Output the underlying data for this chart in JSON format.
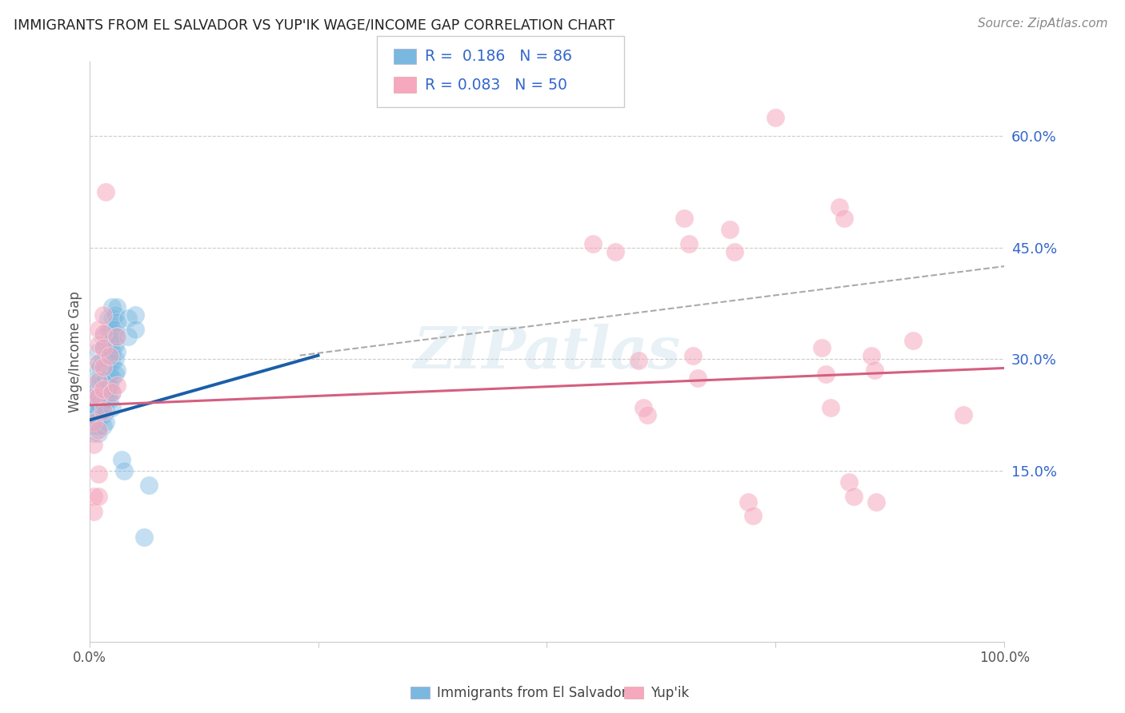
{
  "title": "IMMIGRANTS FROM EL SALVADOR VS YUP'IK WAGE/INCOME GAP CORRELATION CHART",
  "source": "Source: ZipAtlas.com",
  "ylabel": "Wage/Income Gap",
  "ytick_labels": [
    "15.0%",
    "30.0%",
    "45.0%",
    "60.0%"
  ],
  "ytick_values": [
    0.15,
    0.3,
    0.45,
    0.6
  ],
  "xlim": [
    0.0,
    1.0
  ],
  "ylim": [
    -0.08,
    0.7
  ],
  "watermark": "ZIPatlas",
  "blue_color": "#7ab8e0",
  "pink_color": "#f5a8be",
  "line_blue": "#1a5fa8",
  "line_pink": "#d45f80",
  "line_gray": "#aaaaaa",
  "title_color": "#222222",
  "blue_scatter": [
    [
      0.005,
      0.265
    ],
    [
      0.005,
      0.255
    ],
    [
      0.005,
      0.245
    ],
    [
      0.005,
      0.235
    ],
    [
      0.005,
      0.23
    ],
    [
      0.005,
      0.225
    ],
    [
      0.005,
      0.22
    ],
    [
      0.005,
      0.215
    ],
    [
      0.005,
      0.21
    ],
    [
      0.005,
      0.2
    ],
    [
      0.008,
      0.24
    ],
    [
      0.008,
      0.228
    ],
    [
      0.01,
      0.31
    ],
    [
      0.01,
      0.295
    ],
    [
      0.01,
      0.285
    ],
    [
      0.01,
      0.275
    ],
    [
      0.01,
      0.265
    ],
    [
      0.01,
      0.25
    ],
    [
      0.01,
      0.24
    ],
    [
      0.01,
      0.23
    ],
    [
      0.01,
      0.22
    ],
    [
      0.01,
      0.21
    ],
    [
      0.01,
      0.2
    ],
    [
      0.012,
      0.29
    ],
    [
      0.012,
      0.275
    ],
    [
      0.015,
      0.33
    ],
    [
      0.015,
      0.315
    ],
    [
      0.015,
      0.3
    ],
    [
      0.015,
      0.285
    ],
    [
      0.015,
      0.27
    ],
    [
      0.015,
      0.255
    ],
    [
      0.015,
      0.24
    ],
    [
      0.015,
      0.225
    ],
    [
      0.015,
      0.21
    ],
    [
      0.018,
      0.32
    ],
    [
      0.018,
      0.305
    ],
    [
      0.018,
      0.29
    ],
    [
      0.018,
      0.275
    ],
    [
      0.018,
      0.26
    ],
    [
      0.018,
      0.245
    ],
    [
      0.018,
      0.23
    ],
    [
      0.018,
      0.215
    ],
    [
      0.02,
      0.355
    ],
    [
      0.02,
      0.34
    ],
    [
      0.02,
      0.325
    ],
    [
      0.02,
      0.31
    ],
    [
      0.02,
      0.295
    ],
    [
      0.02,
      0.28
    ],
    [
      0.02,
      0.265
    ],
    [
      0.02,
      0.25
    ],
    [
      0.022,
      0.34
    ],
    [
      0.022,
      0.325
    ],
    [
      0.022,
      0.31
    ],
    [
      0.022,
      0.295
    ],
    [
      0.022,
      0.28
    ],
    [
      0.022,
      0.265
    ],
    [
      0.022,
      0.245
    ],
    [
      0.025,
      0.37
    ],
    [
      0.025,
      0.355
    ],
    [
      0.025,
      0.34
    ],
    [
      0.025,
      0.325
    ],
    [
      0.025,
      0.31
    ],
    [
      0.025,
      0.295
    ],
    [
      0.025,
      0.275
    ],
    [
      0.025,
      0.255
    ],
    [
      0.025,
      0.235
    ],
    [
      0.028,
      0.36
    ],
    [
      0.028,
      0.34
    ],
    [
      0.028,
      0.32
    ],
    [
      0.028,
      0.3
    ],
    [
      0.028,
      0.28
    ],
    [
      0.03,
      0.37
    ],
    [
      0.03,
      0.35
    ],
    [
      0.03,
      0.33
    ],
    [
      0.03,
      0.31
    ],
    [
      0.03,
      0.285
    ],
    [
      0.035,
      0.165
    ],
    [
      0.038,
      0.15
    ],
    [
      0.042,
      0.355
    ],
    [
      0.042,
      0.33
    ],
    [
      0.05,
      0.36
    ],
    [
      0.05,
      0.34
    ],
    [
      0.06,
      0.06
    ],
    [
      0.065,
      0.13
    ]
  ],
  "pink_scatter": [
    [
      0.005,
      0.25
    ],
    [
      0.005,
      0.215
    ],
    [
      0.005,
      0.185
    ],
    [
      0.005,
      0.115
    ],
    [
      0.005,
      0.095
    ],
    [
      0.01,
      0.34
    ],
    [
      0.01,
      0.32
    ],
    [
      0.01,
      0.295
    ],
    [
      0.01,
      0.27
    ],
    [
      0.01,
      0.25
    ],
    [
      0.01,
      0.205
    ],
    [
      0.01,
      0.145
    ],
    [
      0.01,
      0.115
    ],
    [
      0.015,
      0.36
    ],
    [
      0.015,
      0.335
    ],
    [
      0.015,
      0.315
    ],
    [
      0.015,
      0.29
    ],
    [
      0.015,
      0.26
    ],
    [
      0.015,
      0.23
    ],
    [
      0.018,
      0.525
    ],
    [
      0.022,
      0.305
    ],
    [
      0.025,
      0.255
    ],
    [
      0.03,
      0.33
    ],
    [
      0.03,
      0.265
    ],
    [
      0.55,
      0.455
    ],
    [
      0.575,
      0.445
    ],
    [
      0.6,
      0.298
    ],
    [
      0.605,
      0.235
    ],
    [
      0.61,
      0.225
    ],
    [
      0.65,
      0.49
    ],
    [
      0.655,
      0.455
    ],
    [
      0.66,
      0.305
    ],
    [
      0.665,
      0.275
    ],
    [
      0.7,
      0.475
    ],
    [
      0.705,
      0.445
    ],
    [
      0.72,
      0.108
    ],
    [
      0.725,
      0.09
    ],
    [
      0.75,
      0.625
    ],
    [
      0.8,
      0.315
    ],
    [
      0.805,
      0.28
    ],
    [
      0.81,
      0.235
    ],
    [
      0.82,
      0.505
    ],
    [
      0.825,
      0.49
    ],
    [
      0.83,
      0.135
    ],
    [
      0.835,
      0.115
    ],
    [
      0.855,
      0.305
    ],
    [
      0.858,
      0.285
    ],
    [
      0.86,
      0.108
    ],
    [
      0.9,
      0.325
    ],
    [
      0.955,
      0.225
    ]
  ],
  "blue_line": {
    "x0": 0.0,
    "x1": 0.25,
    "y0": 0.218,
    "y1": 0.305
  },
  "gray_line": {
    "x0": 0.23,
    "x1": 1.0,
    "y0": 0.305,
    "y1": 0.425
  },
  "pink_line": {
    "x0": 0.0,
    "x1": 1.0,
    "y0": 0.238,
    "y1": 0.288
  }
}
